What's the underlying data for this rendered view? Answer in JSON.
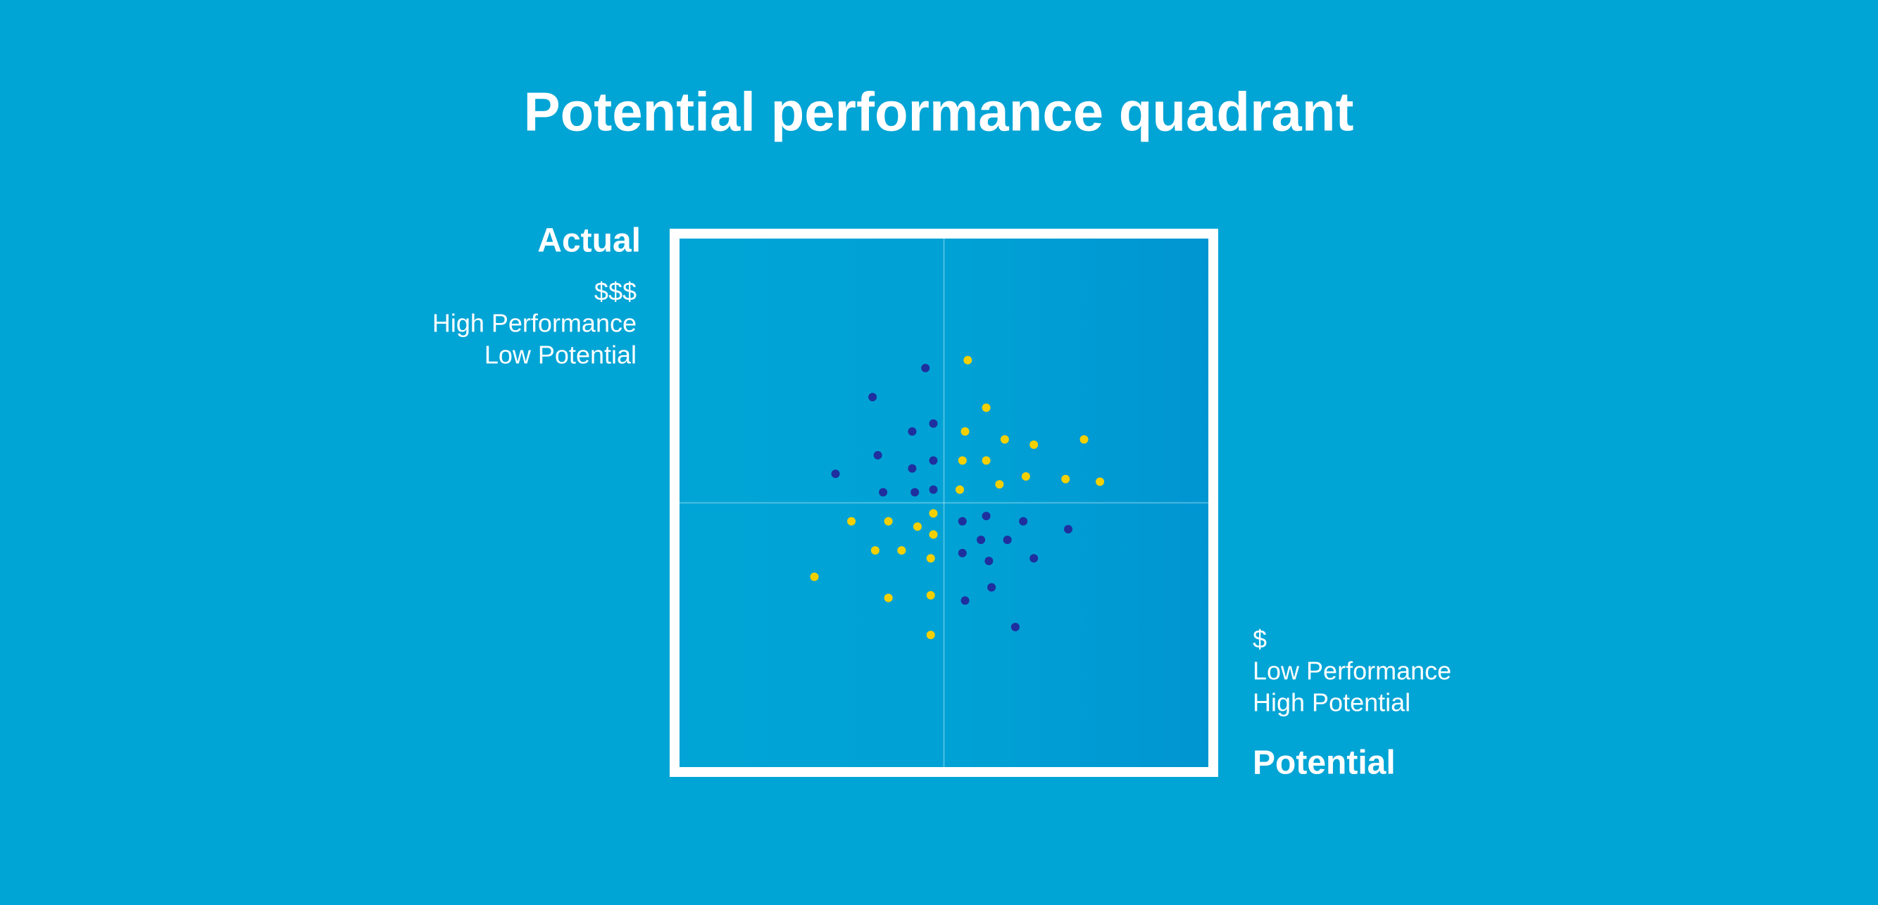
{
  "chart_data": {
    "type": "scatter",
    "title": "Potential performance quadrant",
    "y_axis_label": "Actual",
    "x_axis_label": "Potential",
    "top_note": [
      "$$$",
      "High Performance",
      "Low Potential"
    ],
    "bottom_note": [
      "$",
      "Low Performance",
      "High Potential"
    ],
    "xlim": [
      -100,
      100
    ],
    "ylim": [
      -100,
      100
    ],
    "series": [
      {
        "color": "#1f2f9e",
        "x": [
          -7,
          -27,
          -12,
          -4,
          -25,
          -12,
          -4,
          -41,
          -23,
          -11,
          -4,
          7,
          16,
          30,
          47,
          14,
          24,
          7,
          17,
          34,
          18,
          8,
          27
        ],
        "values": [
          51,
          40,
          27,
          30,
          18,
          13,
          16,
          11,
          4,
          4,
          5,
          -7,
          -5,
          -7,
          -10,
          -14,
          -14,
          -19,
          -22,
          -21,
          -32,
          -37,
          -47
        ]
      },
      {
        "color": "#f5d000",
        "x": [
          9,
          16,
          8,
          23,
          34,
          53,
          7,
          16,
          31,
          21,
          6,
          46,
          59,
          -35,
          -21,
          -10,
          -4,
          -4,
          -26,
          -16,
          -5,
          -49,
          -21,
          -5,
          -5
        ],
        "values": [
          54,
          36,
          27,
          24,
          22,
          24,
          16,
          16,
          10,
          7,
          5,
          9,
          8,
          -7,
          -7,
          -9,
          -4,
          -12,
          -18,
          -18,
          -21,
          -28,
          -36,
          -35,
          -50
        ]
      }
    ]
  }
}
